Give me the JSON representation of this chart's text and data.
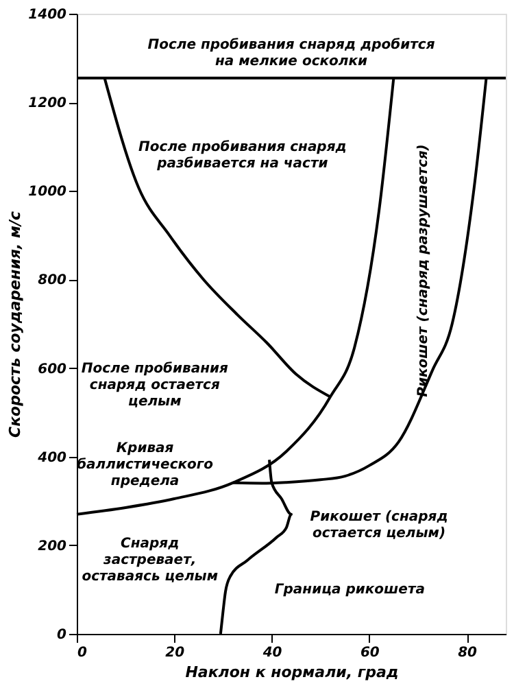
{
  "chart_data": {
    "type": "line",
    "xlabel": "Наклон к нормали, град",
    "ylabel": "Скорость соударения, м/с",
    "xlim": [
      0,
      88
    ],
    "ylim": [
      0,
      1400
    ],
    "xticks": [
      0,
      20,
      40,
      60,
      80
    ],
    "yticks": [
      0,
      200,
      400,
      600,
      800,
      1000,
      1200,
      1400
    ],
    "grid": false,
    "legend": false,
    "marker": "none",
    "line_style": "solid",
    "series": [
      {
        "color": "#000000",
        "x": [
          0,
          10,
          20,
          32,
          43,
          52,
          57,
          62,
          65
        ],
        "values": [
          270,
          285,
          305,
          341,
          412,
          535,
          648,
          955,
          1255
        ]
      },
      {
        "color": "#000000",
        "x": [
          32,
          38,
          43,
          50,
          55,
          60,
          66,
          73,
          77,
          81.5,
          84
        ],
        "values": [
          341,
          340,
          342,
          348,
          356,
          380,
          433,
          596,
          700,
          1007,
          1255
        ]
      },
      {
        "color": "#000000",
        "x": [
          5.7,
          12.7,
          19,
          26,
          33,
          39,
          45,
          52
        ],
        "values": [
          1255,
          1007,
          900,
          800,
          720,
          657,
          586,
          535
        ]
      },
      {
        "color": "#000000",
        "x": [
          39.5,
          40,
          42,
          44,
          43,
          41,
          35,
          31.5,
          30.5,
          30,
          29.5
        ],
        "values": [
          393,
          341,
          305,
          270,
          240,
          218,
          166,
          130,
          95,
          50,
          0
        ]
      }
    ],
    "ref_lines": [
      {
        "axis": "y",
        "value": 1255,
        "color": "#000000",
        "line_style": "solid"
      }
    ],
    "annotations": [
      "После пробивания снаряд дробится на мелкие осколки",
      "После пробивания снаряд разбивается на части",
      "После пробивания снаряд остается целым",
      "Кривая баллистического предела",
      "Снаряд застревает, оставаясь целым",
      "Рикошет (снаряд остается целым)",
      "Граница рикошета",
      "Рикошет (снаряд разрушается)"
    ]
  }
}
